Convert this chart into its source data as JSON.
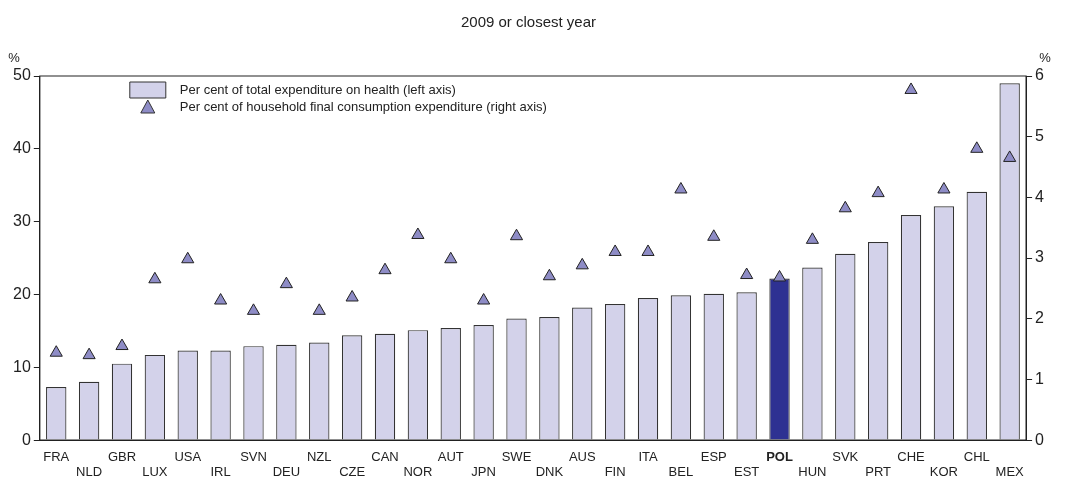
{
  "chart_data": {
    "type": "bar",
    "title": "2009 or closest year",
    "ylabel": "%",
    "y2label": "%",
    "categories": [
      "FRA",
      "NLD",
      "GBR",
      "LUX",
      "USA",
      "IRL",
      "SVN",
      "DEU",
      "NZL",
      "CZE",
      "CAN",
      "NOR",
      "AUT",
      "JPN",
      "SWE",
      "DNK",
      "AUS",
      "FIN",
      "ITA",
      "BEL",
      "ESP",
      "EST",
      "POL",
      "HUN",
      "SVK",
      "PRT",
      "CHE",
      "KOR",
      "CHL",
      "MEX"
    ],
    "series": [
      {
        "name": "Per cent of total expenditure on health (left axis)",
        "color": "#d3d2ea",
        "colors": [
          "#d3d2ea",
          "#d3d2ea",
          "#d3d2ea",
          "#d3d2ea",
          "#d3d2ea",
          "#d3d2ea",
          "#d3d2ea",
          "#d3d2ea",
          "#d3d2ea",
          "#d3d2ea",
          "#d3d2ea",
          "#d3d2ea",
          "#d3d2ea",
          "#d3d2ea",
          "#d3d2ea",
          "#d3d2ea",
          "#d3d2ea",
          "#d3d2ea",
          "#d3d2ea",
          "#d3d2ea",
          "#d3d2ea",
          "#d3d2ea",
          "#2e3192",
          "#d3d2ea",
          "#d3d2ea",
          "#d3d2ea",
          "#d3d2ea",
          "#d3d2ea",
          "#d3d2ea",
          "#d3d2ea"
        ],
        "values": [
          7.3,
          8.0,
          10.5,
          11.7,
          12.3,
          12.3,
          12.9,
          13.1,
          13.4,
          14.4,
          14.6,
          15.1,
          15.4,
          15.8,
          16.7,
          16.9,
          18.2,
          18.7,
          19.5,
          19.9,
          20.1,
          20.3,
          22.2,
          23.7,
          25.6,
          27.2,
          30.9,
          32.1,
          34.1,
          49.0
        ]
      },
      {
        "name": "Per cent of household final consumption expenditure (right axis)",
        "type": "scatter",
        "axis": "y2",
        "marker": "triangle",
        "color": "#8e8cc6",
        "values": [
          1.44,
          1.4,
          1.55,
          2.65,
          2.98,
          2.3,
          2.13,
          2.57,
          2.13,
          2.35,
          2.8,
          3.38,
          2.98,
          2.3,
          3.36,
          2.7,
          2.88,
          3.1,
          3.1,
          4.13,
          3.35,
          2.72,
          2.68,
          3.3,
          3.82,
          4.07,
          5.77,
          4.13,
          4.8,
          4.65
        ]
      }
    ],
    "ylim": [
      0,
      50
    ],
    "yticks": [
      0,
      10,
      20,
      30,
      40,
      50
    ],
    "y2lim": [
      0,
      6
    ],
    "y2ticks": [
      0,
      1,
      2,
      3,
      4,
      5,
      6
    ],
    "grid": false,
    "legend": "top left"
  }
}
